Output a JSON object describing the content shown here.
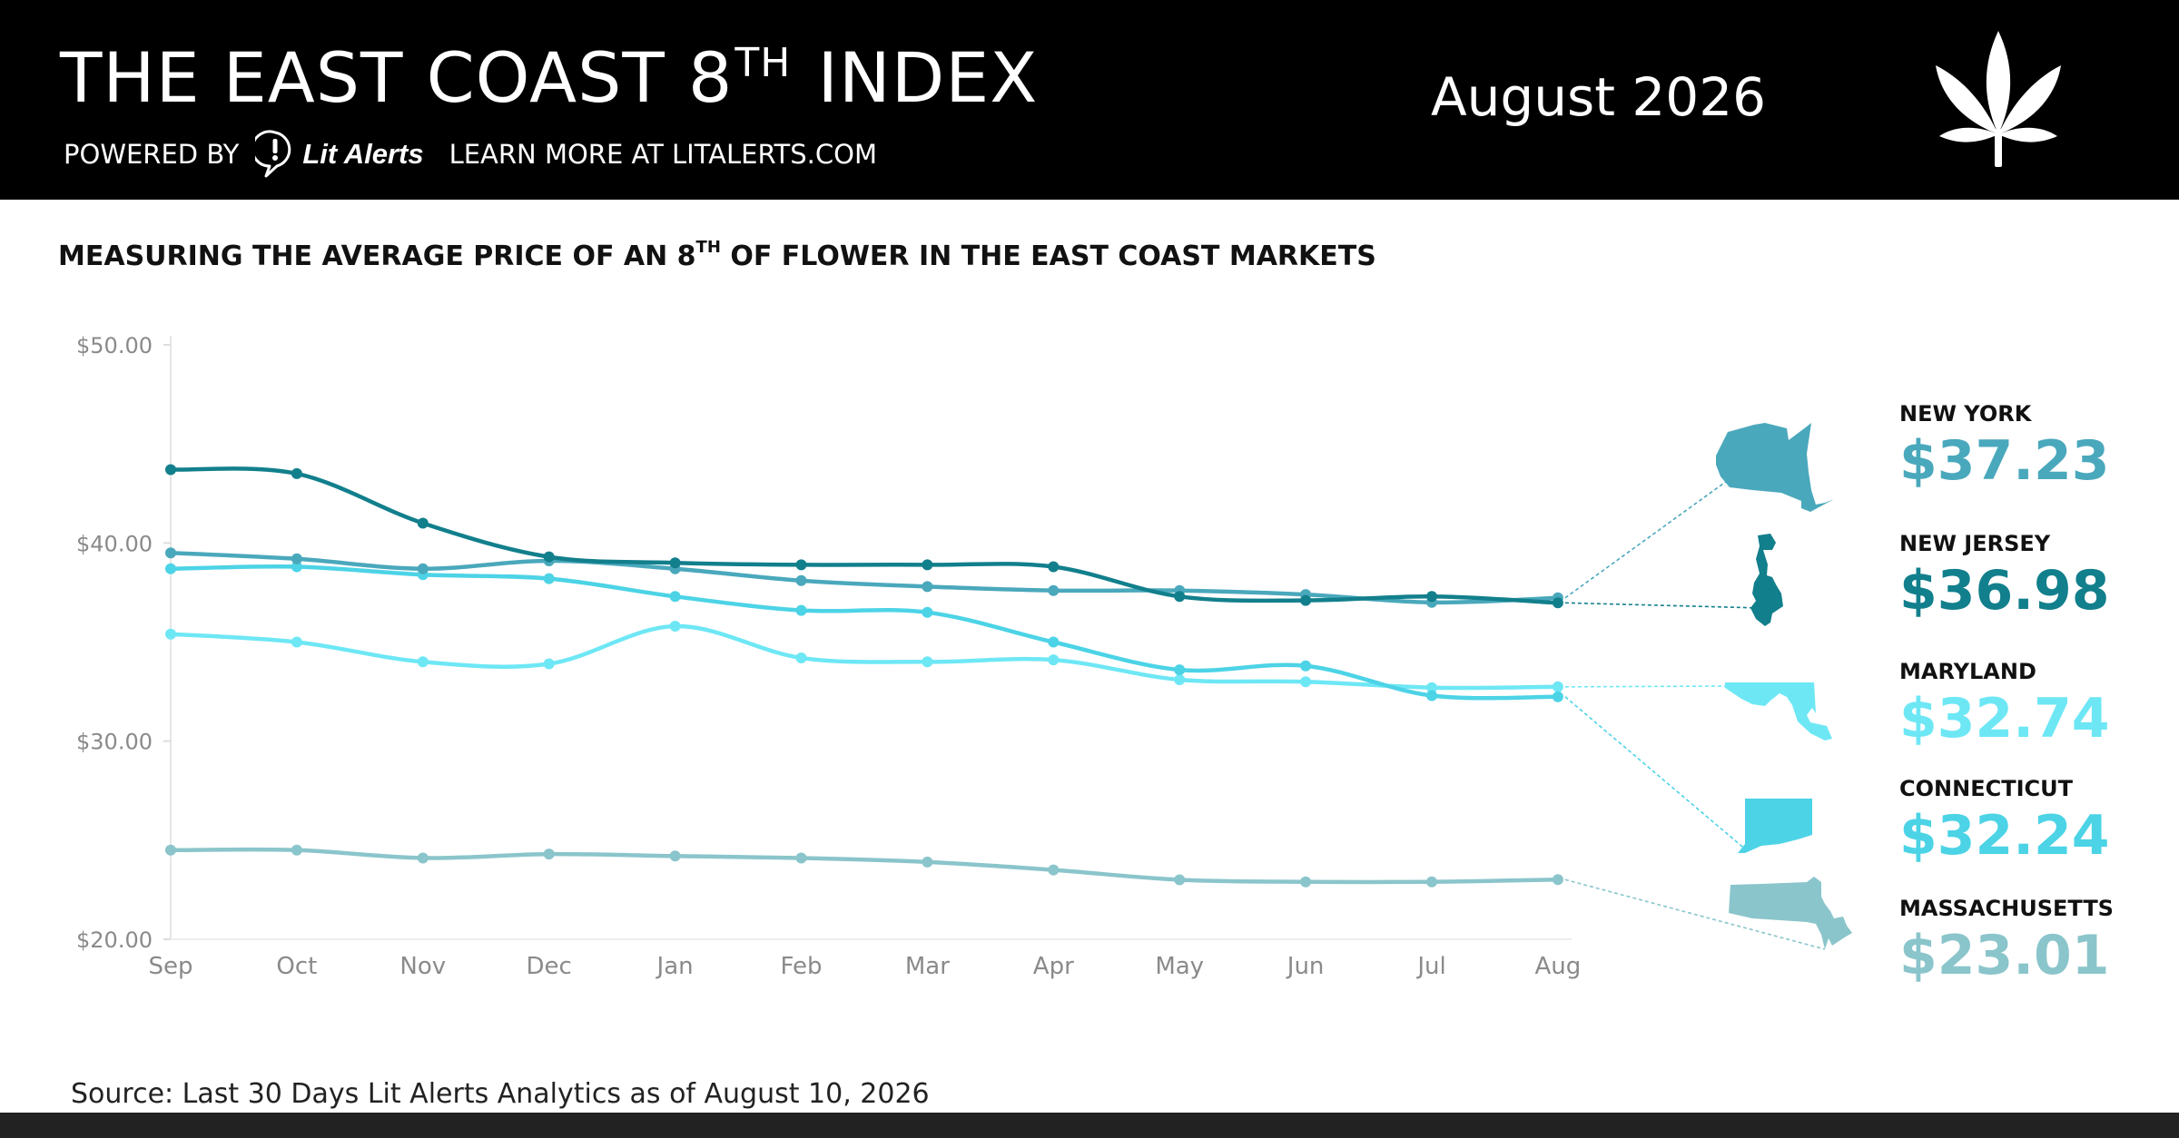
{
  "header": {
    "title_main": "THE EAST COAST 8",
    "title_sup": "TH",
    "title_end": "INDEX",
    "powered_by": "POWERED BY",
    "brand": "Lit Alerts",
    "learn_more": "LEARN MORE AT LITALERTS.COM",
    "month": "August 2026",
    "leaf_icon": "cannabis-leaf-icon"
  },
  "subtitle": {
    "before": "MEASURING THE AVERAGE PRICE OF AN 8",
    "sup": "TH",
    "after": " OF FLOWER IN THE EAST COAST MARKETS"
  },
  "chart_data": {
    "type": "line",
    "categories": [
      "Sep",
      "Oct",
      "Nov",
      "Dec",
      "Jan",
      "Feb",
      "Mar",
      "Apr",
      "May",
      "Jun",
      "Jul",
      "Aug"
    ],
    "ylim": [
      20,
      50
    ],
    "yticks": [
      20,
      30,
      40,
      50
    ],
    "ytick_labels": [
      "$20.00",
      "$30.00",
      "$40.00",
      "$50.00"
    ],
    "grid": false,
    "series": [
      {
        "name": "NEW YORK",
        "color": "#4aa8bc",
        "display_value": "$37.23",
        "values": [
          39.5,
          39.2,
          38.7,
          39.1,
          38.7,
          38.1,
          37.8,
          37.6,
          37.6,
          37.4,
          37.0,
          37.23
        ]
      },
      {
        "name": "NEW JERSEY",
        "color": "#127f8c",
        "display_value": "$36.98",
        "values": [
          43.7,
          43.5,
          41.0,
          39.3,
          39.0,
          38.9,
          38.9,
          38.8,
          37.3,
          37.1,
          37.3,
          36.98
        ]
      },
      {
        "name": "MARYLAND",
        "color": "#6ee7f5",
        "display_value": "$32.74",
        "values": [
          35.4,
          35.0,
          34.0,
          33.9,
          35.8,
          34.2,
          34.0,
          34.1,
          33.1,
          33.0,
          32.7,
          32.74
        ]
      },
      {
        "name": "CONNECTICUT",
        "color": "#4cd3e6",
        "display_value": "$32.24",
        "values": [
          38.7,
          38.8,
          38.4,
          38.2,
          37.3,
          36.6,
          36.5,
          35.0,
          33.6,
          33.8,
          32.3,
          32.24
        ]
      },
      {
        "name": "MASSACHUSETTS",
        "color": "#8ac5cb",
        "display_value": "$23.01",
        "values": [
          24.5,
          24.5,
          24.1,
          24.3,
          24.2,
          24.1,
          23.9,
          23.5,
          23.0,
          22.9,
          22.9,
          23.01
        ]
      }
    ]
  },
  "source": "Source: Last 30 Days Lit Alerts Analytics as of August 10, 2026"
}
